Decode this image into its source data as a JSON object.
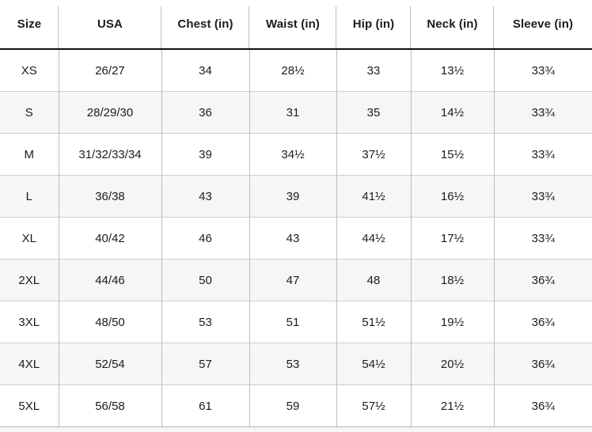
{
  "table": {
    "columns": [
      "Size",
      "USA",
      "Chest (in)",
      "Waist (in)",
      "Hip (in)",
      "Neck (in)",
      "Sleeve (in)"
    ],
    "rows": [
      {
        "size": "XS",
        "usa": "26/27",
        "chest": "34",
        "waist": "28½",
        "hip": "33",
        "neck": "13½",
        "sleeve": "33¾"
      },
      {
        "size": "S",
        "usa": "28/29/30",
        "chest": "36",
        "waist": "31",
        "hip": "35",
        "neck": "14½",
        "sleeve": "33¾"
      },
      {
        "size": "M",
        "usa": "31/32/33/34",
        "chest": "39",
        "waist": "34½",
        "hip": "37½",
        "neck": "15½",
        "sleeve": "33¾"
      },
      {
        "size": "L",
        "usa": "36/38",
        "chest": "43",
        "waist": "39",
        "hip": "41½",
        "neck": "16½",
        "sleeve": "33¾"
      },
      {
        "size": "XL",
        "usa": "40/42",
        "chest": "46",
        "waist": "43",
        "hip": "44½",
        "neck": "17½",
        "sleeve": "33¾"
      },
      {
        "size": "2XL",
        "usa": "44/46",
        "chest": "50",
        "waist": "47",
        "hip": "48",
        "neck": "18½",
        "sleeve": "36¾"
      },
      {
        "size": "3XL",
        "usa": "48/50",
        "chest": "53",
        "waist": "51",
        "hip": "51½",
        "neck": "19½",
        "sleeve": "36¾"
      },
      {
        "size": "4XL",
        "usa": "52/54",
        "chest": "57",
        "waist": "53",
        "hip": "54½",
        "neck": "20½",
        "sleeve": "36¾"
      },
      {
        "size": "5XL",
        "usa": "56/58",
        "chest": "61",
        "waist": "59",
        "hip": "57½",
        "neck": "21½",
        "sleeve": "36¾"
      }
    ]
  },
  "colors": {
    "stripe_row_bg": "#f6f6f7",
    "column_divider": "#bdbdbd",
    "row_divider": "#cfcfcf",
    "header_underline": "#111111",
    "text": "#1c1c1c"
  }
}
